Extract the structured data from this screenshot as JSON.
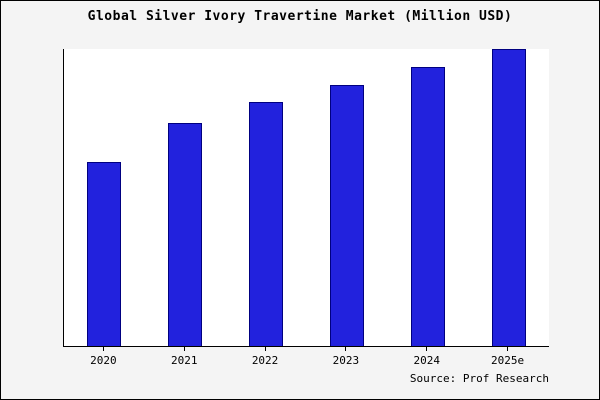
{
  "chart_data": {
    "type": "bar",
    "title": "Global Silver Ivory Travertine Market (Million USD)",
    "categories": [
      "2020",
      "2021",
      "2022",
      "2023",
      "2024",
      "2025e"
    ],
    "values": [
      62,
      75,
      82,
      88,
      94,
      100
    ],
    "xlabel": "",
    "ylabel": "",
    "ylim": [
      0,
      100
    ],
    "grid": false,
    "legend": "none",
    "source": "Source: Prof Research",
    "colors": {
      "bar_fill": "#2222dd",
      "bar_border": "#000080",
      "plot_background": "#ffffff",
      "page_background": "#f4f4f4",
      "axis": "#000000"
    }
  }
}
